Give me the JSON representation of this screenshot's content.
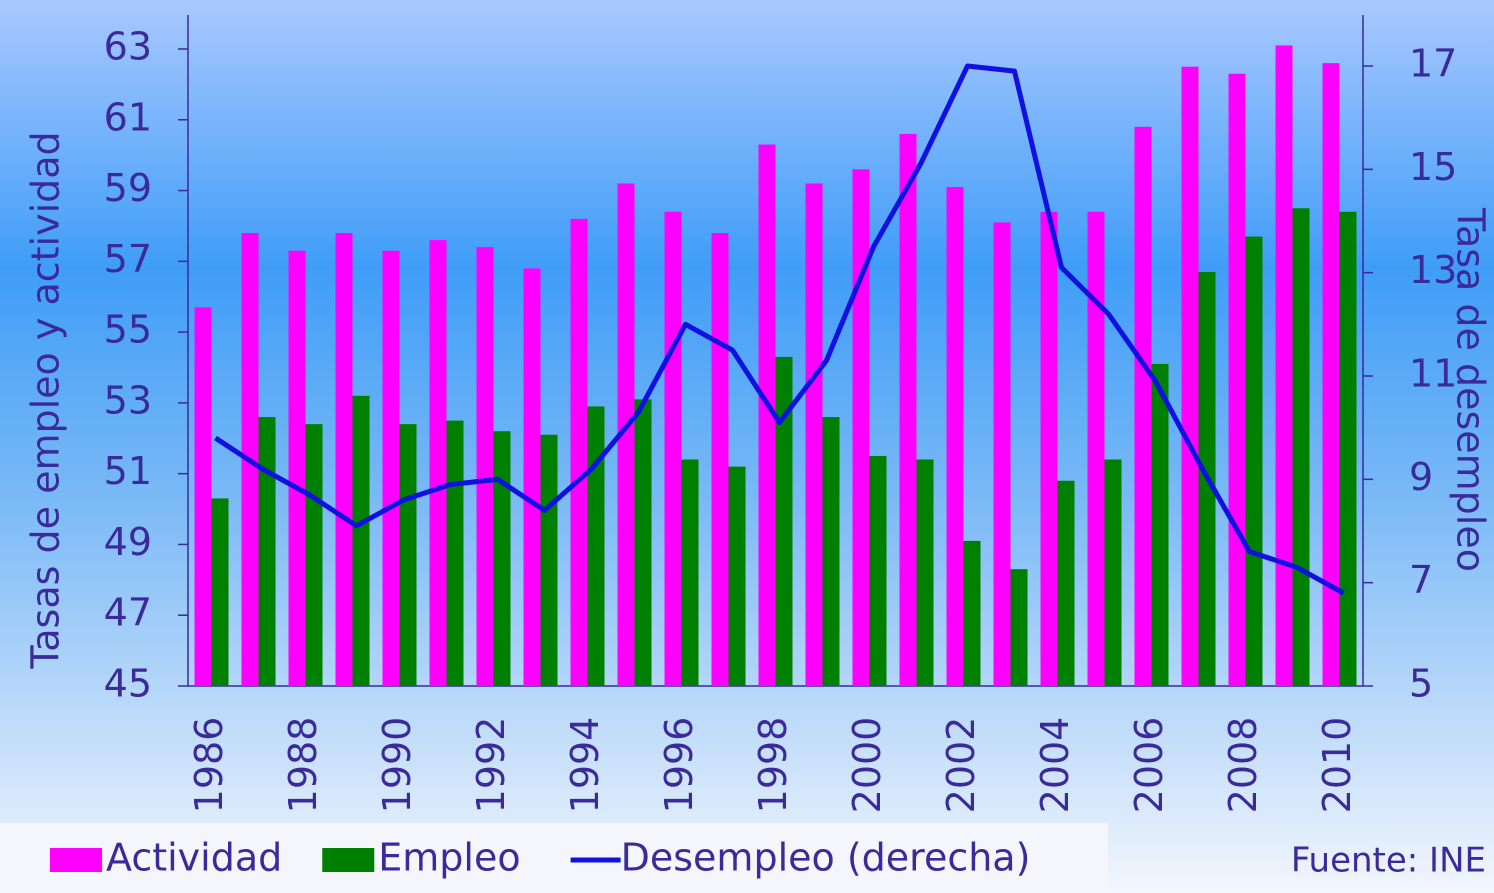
{
  "chart_data": {
    "type": "bar",
    "categories": [
      "1986",
      null,
      "1988",
      null,
      "1990",
      null,
      "1992",
      null,
      "1994",
      null,
      "1996",
      null,
      "1998",
      null,
      "2000",
      null,
      "2002",
      null,
      "2004",
      null,
      "2006",
      null,
      "2008",
      null,
      "2010"
    ],
    "series": [
      {
        "name": "Actividad",
        "color": "#ff00ff",
        "values": [
          55.7,
          57.8,
          57.3,
          57.8,
          57.3,
          57.6,
          57.4,
          56.8,
          58.2,
          59.2,
          58.4,
          57.8,
          60.3,
          59.2,
          59.6,
          60.6,
          59.1,
          58.1,
          58.4,
          58.4,
          60.8,
          62.5,
          62.3,
          63.1,
          62.6
        ]
      },
      {
        "name": "Empleo",
        "color": "#008000",
        "values": [
          50.3,
          52.6,
          52.4,
          53.2,
          52.4,
          52.5,
          52.2,
          52.1,
          52.9,
          53.1,
          51.4,
          51.2,
          54.3,
          52.6,
          51.5,
          51.4,
          49.1,
          48.3,
          50.8,
          51.4,
          54.1,
          56.7,
          57.7,
          58.5,
          58.4
        ]
      },
      {
        "name": "Desempleo (derecha)",
        "color": "#1010e0",
        "type": "line",
        "axis": "y2",
        "values": [
          9.8,
          9.2,
          8.7,
          8.1,
          8.6,
          8.9,
          9.0,
          8.4,
          9.2,
          10.3,
          12.0,
          11.5,
          10.1,
          11.3,
          13.5,
          15.1,
          17.0,
          16.9,
          13.1,
          12.2,
          10.9,
          9.2,
          7.6,
          7.3,
          6.8
        ]
      }
    ],
    "ylabel": "Tasas de empleo y actividad",
    "y2label": "Tasa de desempleo",
    "ylim": [
      45,
      63
    ],
    "yticks": [
      45,
      47,
      49,
      51,
      53,
      55,
      57,
      59,
      61,
      63
    ],
    "y2lim": [
      5,
      17
    ],
    "y2ticks": [
      5,
      7,
      9,
      11,
      13,
      15,
      17
    ],
    "note": "Fuente: INE",
    "legend": "bottom-left"
  }
}
